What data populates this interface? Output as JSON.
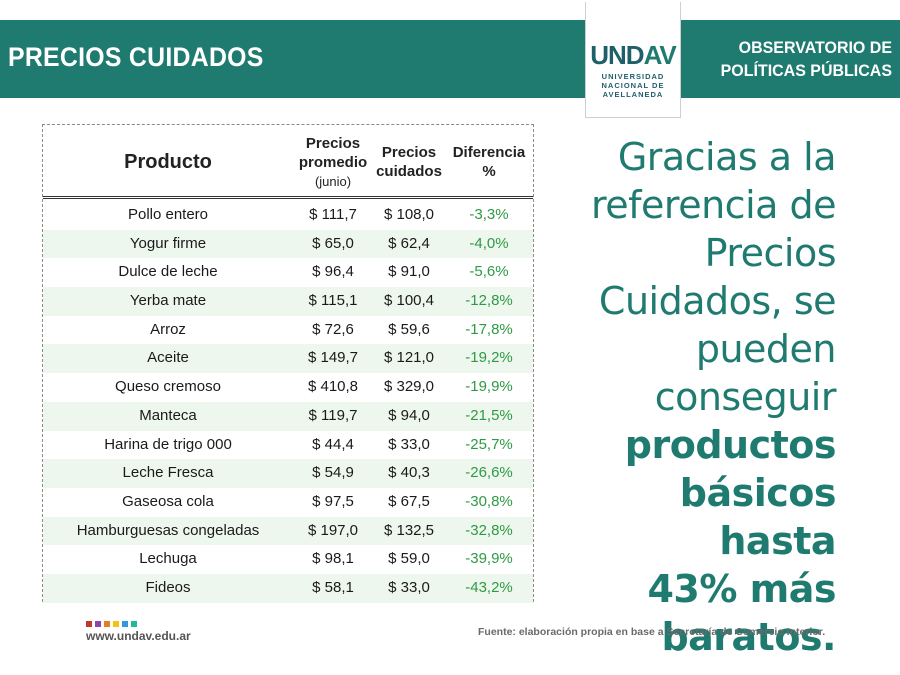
{
  "header": {
    "title": "PRECIOS CUIDADOS",
    "observatory_line1": "OBSERVATORIO DE",
    "observatory_line2": "POLÍTICAS PÚBLICAS",
    "logo_text_a": "UND",
    "logo_text_b": "AV",
    "logo_sub_line1": "UNIVERSIDAD",
    "logo_sub_line2": "NACIONAL DE",
    "logo_sub_line3": "AVELLANEDA",
    "accent_color": "#1f7a70"
  },
  "table": {
    "headers": {
      "product": "Producto",
      "avg_line1": "Precios",
      "avg_line2": "promedio",
      "avg_line3": "(junio)",
      "care_line1": "Precios",
      "care_line2": "cuidados",
      "diff_line1": "Diferencia",
      "diff_line2": "%"
    },
    "rows": [
      {
        "product": "Pollo entero",
        "avg": "$ 111,7",
        "care": "$ 108,0",
        "diff": "-3,3%"
      },
      {
        "product": "Yogur firme",
        "avg": "$ 65,0",
        "care": "$ 62,4",
        "diff": "-4,0%"
      },
      {
        "product": "Dulce de leche",
        "avg": "$ 96,4",
        "care": "$ 91,0",
        "diff": "-5,6%"
      },
      {
        "product": "Yerba mate",
        "avg": "$ 115,1",
        "care": "$ 100,4",
        "diff": "-12,8%"
      },
      {
        "product": "Arroz",
        "avg": "$ 72,6",
        "care": "$ 59,6",
        "diff": "-17,8%"
      },
      {
        "product": "Aceite",
        "avg": "$ 149,7",
        "care": "$ 121,0",
        "diff": "-19,2%"
      },
      {
        "product": "Queso cremoso",
        "avg": "$ 410,8",
        "care": "$ 329,0",
        "diff": "-19,9%"
      },
      {
        "product": "Manteca",
        "avg": "$ 119,7",
        "care": "$ 94,0",
        "diff": "-21,5%"
      },
      {
        "product": "Harina de trigo 000",
        "avg": "$ 44,4",
        "care": "$ 33,0",
        "diff": "-25,7%"
      },
      {
        "product": "Leche Fresca",
        "avg": "$ 54,9",
        "care": "$ 40,3",
        "diff": "-26,6%"
      },
      {
        "product": "Gaseosa cola",
        "avg": "$ 97,5",
        "care": "$ 67,5",
        "diff": "-30,8%"
      },
      {
        "product": "Hamburguesas congeladas",
        "avg": "$ 197,0",
        "care": "$ 132,5",
        "diff": "-32,8%"
      },
      {
        "product": "Lechuga",
        "avg": "$ 98,1",
        "care": "$ 59,0",
        "diff": "-39,9%"
      },
      {
        "product": "Fideos",
        "avg": "$ 58,1",
        "care": "$ 33,0",
        "diff": "-43,2%"
      }
    ]
  },
  "quote": {
    "lines_regular": [
      "Gracias a la",
      "referencia de",
      "Precios",
      "Cuidados, se",
      "pueden",
      "conseguir"
    ],
    "lines_bold": [
      "productos",
      "básicos hasta",
      "43% más",
      "baratos."
    ]
  },
  "footer": {
    "url": "www.undav.edu.ar",
    "source": "Fuente: elaboración propia en base a Secretaría de Comercio Interior.",
    "dot_colors": [
      "#c0392b",
      "#8e44ad",
      "#e67e22",
      "#f1c40f",
      "#3498db",
      "#1abc9c"
    ]
  }
}
